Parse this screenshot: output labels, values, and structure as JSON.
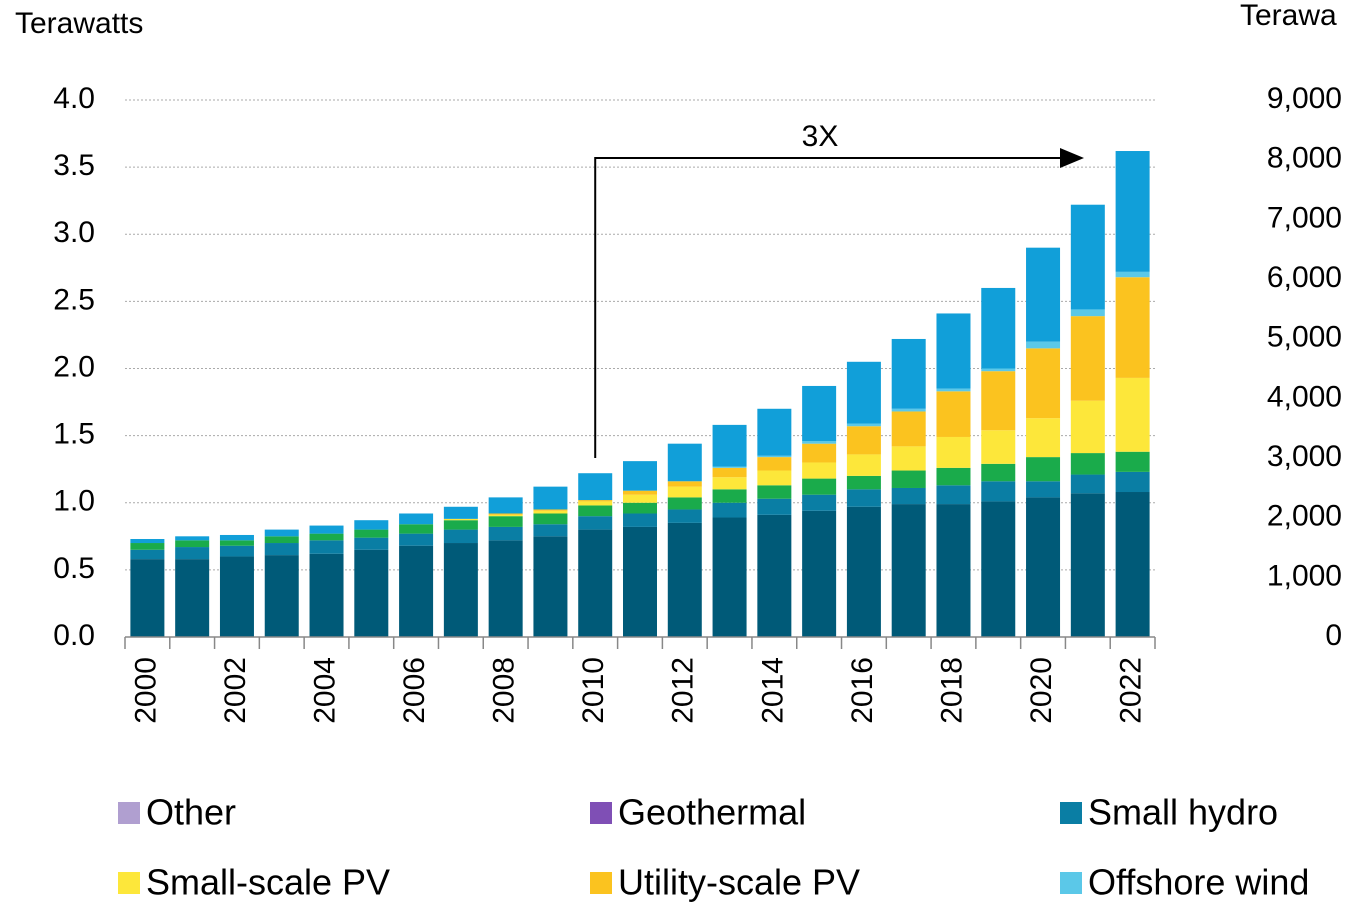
{
  "chart_data": {
    "type": "stacked_bar",
    "y_label": "Terawatts",
    "y2_label": "Terawa",
    "annotation": "3X",
    "categories": [
      "2000",
      null,
      "2002",
      null,
      "2004",
      null,
      "2006",
      null,
      "2008",
      null,
      "2010",
      null,
      "2012",
      null,
      "2014",
      null,
      "2016",
      null,
      "2018",
      null,
      "2020",
      null,
      "2022"
    ],
    "ylim": [
      0,
      4.0
    ],
    "yticks": [
      {
        "value": 0,
        "label": "0.0"
      },
      0.5,
      {
        "value": 1,
        "label": "1.0"
      },
      1.5,
      {
        "value": 2,
        "label": "2.0"
      },
      2.5,
      {
        "value": 3,
        "label": "3.0"
      },
      3.5,
      {
        "value": 4,
        "label": "4.0"
      }
    ],
    "y2lim": [
      0,
      9000
    ],
    "y2ticks": [
      0,
      {
        "value": 1000,
        "label": "1,000"
      },
      {
        "value": 2000,
        "label": "2,000"
      },
      {
        "value": 3000,
        "label": "3,000"
      },
      {
        "value": 4000,
        "label": "4,000"
      },
      {
        "value": 5000,
        "label": "5,000"
      },
      {
        "value": 6000,
        "label": "6,000"
      },
      {
        "value": 7000,
        "label": "7,000"
      },
      {
        "value": 8000,
        "label": "8,000"
      },
      {
        "value": 9000,
        "label": "9,000"
      }
    ],
    "grid": true,
    "series": [
      {
        "color": "#005a78",
        "values": [
          0.58,
          0.58,
          0.6,
          0.61,
          0.62,
          0.65,
          0.68,
          0.7,
          0.72,
          0.75,
          0.8,
          0.82,
          0.85,
          0.89,
          0.91,
          0.94,
          0.97,
          0.99,
          0.99,
          1.01,
          1.04,
          1.07,
          1.08
        ]
      },
      {
        "name": "Other",
        "color": "#b09fd0",
        "values": [
          0,
          0,
          0,
          0,
          0,
          0,
          0,
          0,
          0,
          0,
          0,
          0,
          0,
          0,
          0,
          0,
          0,
          0,
          0,
          0,
          0,
          0,
          0
        ]
      },
      {
        "name": "Geothermal",
        "color": "#7f4fb5",
        "values": [
          0,
          0,
          0,
          0,
          0,
          0,
          0,
          0,
          0,
          0,
          0,
          0,
          0,
          0,
          0,
          0,
          0,
          0,
          0,
          0,
          0,
          0,
          0
        ]
      },
      {
        "name": "Small hydro",
        "color": "#0a7ea4",
        "values": [
          0.07,
          0.09,
          0.08,
          0.09,
          0.1,
          0.09,
          0.09,
          0.1,
          0.1,
          0.09,
          0.1,
          0.1,
          0.1,
          0.11,
          0.12,
          0.12,
          0.13,
          0.12,
          0.14,
          0.15,
          0.12,
          0.14,
          0.15
        ]
      },
      {
        "color": "#1aab4b",
        "values": [
          0.05,
          0.05,
          0.04,
          0.05,
          0.05,
          0.06,
          0.07,
          0.07,
          0.08,
          0.08,
          0.08,
          0.08,
          0.09,
          0.1,
          0.1,
          0.12,
          0.1,
          0.13,
          0.13,
          0.13,
          0.18,
          0.16,
          0.15
        ]
      },
      {
        "name": "Small-scale PV",
        "color": "#fde73a",
        "values": [
          0,
          0,
          0,
          0,
          0,
          0,
          0,
          0.01,
          0.01,
          0.02,
          0.03,
          0.06,
          0.08,
          0.09,
          0.11,
          0.12,
          0.16,
          0.18,
          0.23,
          0.25,
          0.29,
          0.39,
          0.55
        ]
      },
      {
        "name": "Utility-scale PV",
        "color": "#fbc31f",
        "values": [
          0,
          0,
          0,
          0,
          0,
          0,
          0,
          0,
          0.01,
          0.01,
          0.01,
          0.03,
          0.04,
          0.07,
          0.1,
          0.14,
          0.21,
          0.26,
          0.34,
          0.44,
          0.52,
          0.63,
          0.75
        ]
      },
      {
        "name": "Offshore wind",
        "color": "#5bc8e8",
        "values": [
          0,
          0,
          0,
          0,
          0,
          0,
          0,
          0,
          0,
          0,
          0,
          0,
          0,
          0.01,
          0.01,
          0.02,
          0.02,
          0.02,
          0.02,
          0.02,
          0.05,
          0.05,
          0.04
        ]
      },
      {
        "color": "#119fd9",
        "values": [
          0.03,
          0.03,
          0.04,
          0.05,
          0.06,
          0.07,
          0.08,
          0.09,
          0.12,
          0.17,
          0.2,
          0.22,
          0.28,
          0.31,
          0.35,
          0.41,
          0.46,
          0.52,
          0.56,
          0.6,
          0.7,
          0.78,
          0.9
        ]
      }
    ]
  }
}
